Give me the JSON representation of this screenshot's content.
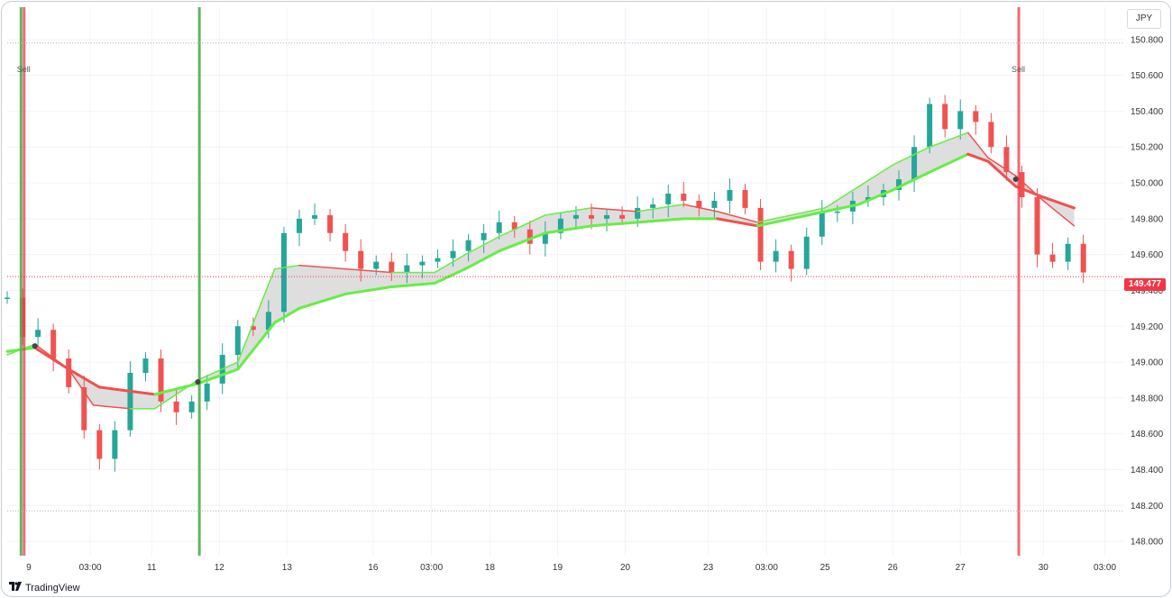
{
  "currency": "JPY",
  "last_price": "149.477",
  "logo_text": "TradingView",
  "colors": {
    "bull": "#26a69a",
    "bear": "#ef5350",
    "band_up": "#66ee44",
    "band_down": "#f05050",
    "fill": "#d8d8d8",
    "grid": "#f0f3fa",
    "signal_green": "#4caf50",
    "signal_red": "#f23645"
  },
  "signals": [
    {
      "type": "buy_line",
      "x": 0.9
    },
    {
      "type": "sell_line",
      "x": 1.1,
      "label": "Sell"
    },
    {
      "type": "buy_line",
      "x": 12.5
    },
    {
      "type": "sell_line",
      "x": 65.8,
      "label": "Sell"
    }
  ],
  "chart_data": {
    "type": "line",
    "title": "",
    "xlabel": "",
    "ylabel": "",
    "x_ticks": [
      {
        "x": 1.4,
        "label": "9"
      },
      {
        "x": 5.4,
        "label": "03:00"
      },
      {
        "x": 9.4,
        "label": "11"
      },
      {
        "x": 13.8,
        "label": "12"
      },
      {
        "x": 18.2,
        "label": "13"
      },
      {
        "x": 23.8,
        "label": "16"
      },
      {
        "x": 27.6,
        "label": "03:00"
      },
      {
        "x": 31.4,
        "label": "18"
      },
      {
        "x": 35.8,
        "label": "19"
      },
      {
        "x": 40.2,
        "label": "20"
      },
      {
        "x": 45.6,
        "label": "23"
      },
      {
        "x": 49.4,
        "label": "03:00"
      },
      {
        "x": 53.2,
        "label": "25"
      },
      {
        "x": 57.6,
        "label": "26"
      },
      {
        "x": 62.0,
        "label": "27"
      },
      {
        "x": 67.4,
        "label": "30"
      },
      {
        "x": 71.4,
        "label": "03:00"
      }
    ],
    "y_ticks": [
      148.0,
      148.2,
      148.4,
      148.6,
      148.8,
      149.0,
      149.2,
      149.4,
      149.6,
      149.8,
      150.0,
      150.2,
      150.4,
      150.6,
      150.8
    ],
    "ylim": [
      147.92,
      150.98
    ],
    "xlim": [
      0,
      72.6
    ],
    "close": [
      [
        0,
        149.36
      ],
      [
        1,
        149.14
      ],
      [
        2,
        149.18
      ],
      [
        3,
        149.02
      ],
      [
        4,
        148.86
      ],
      [
        5,
        148.62
      ],
      [
        6,
        148.46
      ],
      [
        7,
        148.62
      ],
      [
        8,
        148.94
      ],
      [
        9,
        149.02
      ],
      [
        10,
        148.78
      ],
      [
        11,
        148.72
      ],
      [
        12,
        148.78
      ],
      [
        13,
        148.88
      ],
      [
        14,
        149.04
      ],
      [
        15,
        149.2
      ],
      [
        16,
        149.18
      ],
      [
        17,
        149.28
      ],
      [
        18,
        149.72
      ],
      [
        19,
        149.8
      ],
      [
        20,
        149.82
      ],
      [
        21,
        149.72
      ],
      [
        22,
        149.62
      ],
      [
        23,
        149.52
      ],
      [
        24,
        149.56
      ],
      [
        25,
        149.5
      ],
      [
        26,
        149.54
      ],
      [
        27,
        149.56
      ],
      [
        28,
        149.58
      ],
      [
        29,
        149.62
      ],
      [
        30,
        149.68
      ],
      [
        31,
        149.72
      ],
      [
        32,
        149.78
      ],
      [
        33,
        149.74
      ],
      [
        34,
        149.66
      ],
      [
        35,
        149.72
      ],
      [
        36,
        149.8
      ],
      [
        37,
        149.82
      ],
      [
        38,
        149.8
      ],
      [
        39,
        149.82
      ],
      [
        40,
        149.8
      ],
      [
        41,
        149.86
      ],
      [
        42,
        149.88
      ],
      [
        43,
        149.94
      ],
      [
        44,
        149.9
      ],
      [
        45,
        149.86
      ],
      [
        46,
        149.9
      ],
      [
        47,
        149.96
      ],
      [
        48,
        149.86
      ],
      [
        49,
        149.56
      ],
      [
        50,
        149.62
      ],
      [
        51,
        149.52
      ],
      [
        52,
        149.7
      ],
      [
        53,
        149.84
      ],
      [
        54,
        149.84
      ],
      [
        55,
        149.9
      ],
      [
        56,
        149.92
      ],
      [
        57,
        149.96
      ],
      [
        58,
        150.02
      ],
      [
        59,
        150.2
      ],
      [
        60,
        150.44
      ],
      [
        61,
        150.3
      ],
      [
        62,
        150.4
      ],
      [
        63,
        150.34
      ],
      [
        64,
        150.2
      ],
      [
        65,
        150.06
      ],
      [
        66,
        149.92
      ],
      [
        67,
        149.6
      ],
      [
        68,
        149.56
      ],
      [
        69,
        149.66
      ],
      [
        70,
        149.5
      ]
    ],
    "series": [
      {
        "name": "",
        "values": [
          [
            0,
            149.06
          ],
          [
            1.8,
            149.08
          ],
          [
            4,
            148.96
          ],
          [
            6,
            148.86
          ],
          [
            9.6,
            148.82
          ],
          [
            12.4,
            148.88
          ],
          [
            15,
            148.96
          ],
          [
            17.4,
            149.22
          ],
          [
            19,
            149.3
          ],
          [
            22,
            149.38
          ],
          [
            25,
            149.42
          ],
          [
            27.8,
            149.44
          ],
          [
            29.8,
            149.52
          ],
          [
            32,
            149.62
          ],
          [
            35,
            149.72
          ],
          [
            38,
            149.76
          ],
          [
            41,
            149.78
          ],
          [
            44,
            149.8
          ],
          [
            46.2,
            149.8
          ],
          [
            48.8,
            149.76
          ],
          [
            51,
            149.8
          ],
          [
            53.2,
            149.84
          ],
          [
            55.4,
            149.88
          ],
          [
            57.6,
            149.96
          ],
          [
            60,
            150.06
          ],
          [
            62.5,
            150.16
          ],
          [
            63.8,
            150.12
          ],
          [
            65.6,
            149.98
          ],
          [
            67.4,
            149.92
          ],
          [
            69.4,
            149.86
          ]
        ]
      },
      {
        "name": "",
        "values": [
          [
            0,
            149.04
          ],
          [
            1.8,
            149.1
          ],
          [
            4,
            148.96
          ],
          [
            5.6,
            148.76
          ],
          [
            8,
            148.74
          ],
          [
            9.6,
            148.74
          ],
          [
            12.4,
            148.9
          ],
          [
            15,
            149.0
          ],
          [
            17.4,
            149.52
          ],
          [
            19,
            149.54
          ],
          [
            22,
            149.52
          ],
          [
            25,
            149.5
          ],
          [
            27.8,
            149.5
          ],
          [
            29.8,
            149.6
          ],
          [
            32,
            149.7
          ],
          [
            35,
            149.82
          ],
          [
            38,
            149.86
          ],
          [
            41,
            149.84
          ],
          [
            44,
            149.88
          ],
          [
            46.2,
            149.84
          ],
          [
            48.8,
            149.78
          ],
          [
            51,
            149.82
          ],
          [
            53.2,
            149.86
          ],
          [
            55.4,
            149.98
          ],
          [
            57.6,
            150.1
          ],
          [
            60,
            150.2
          ],
          [
            62.5,
            150.28
          ],
          [
            63.8,
            150.14
          ],
          [
            65.6,
            150.04
          ],
          [
            67.4,
            149.9
          ],
          [
            69.4,
            149.76
          ]
        ]
      }
    ]
  }
}
